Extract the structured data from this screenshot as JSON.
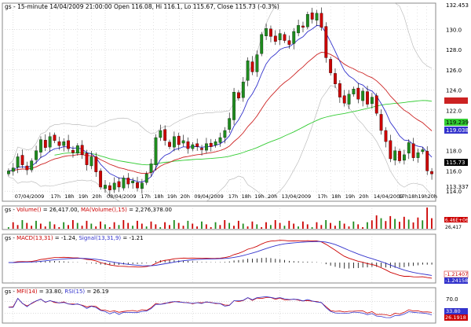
{
  "panel_main": {
    "symbol": "gs",
    "interval": "15-minute",
    "date": "14/04/2009 21:00:00",
    "ohlc_text": "Open 116.08, Hi 116.1, Lo 115.67, Close 115.73 (-0.3%)",
    "price_ticks": [
      "132.453",
      "130.0",
      "128.0",
      "126.0",
      "124.0",
      "122.0",
      "120.0",
      "118.0",
      "116.0",
      "114.0"
    ],
    "tag_upper_red": "",
    "tag_green": "119.239",
    "tag_blue": "119.038",
    "tag_close": "115.73",
    "tag_lower_bb": "113.337",
    "date_labels": [
      "07/04/2009",
      "08/04/2009",
      "09/04/2009",
      "13/04/2009",
      "14/04/2009"
    ],
    "hour_labels": [
      "17h",
      "18h",
      "19h",
      "20h"
    ]
  },
  "panel_volume": {
    "label_prefix": "gs -",
    "label_volume": "Volume()",
    "label_volume_val": " = 26,417.00, ",
    "label_ma": "MA(Volume(),15)",
    "label_ma_val": " = 2,276,378.00",
    "tag_top": "6.46E+06",
    "tag_bottom": "26,417"
  },
  "panel_macd": {
    "label_prefix": "gs -",
    "label_macd": "MACD(13,31)",
    "label_macd_val": " = -1.24, ",
    "label_signal": "Signal(13,31,9)",
    "label_signal_val": " = -1.21",
    "tag_red": "-1.21407",
    "tag_blue": "-1.24158"
  },
  "panel_mfi": {
    "label_prefix": "gs -",
    "label_mfi": "MFI(14)",
    "label_mfi_val": " = 33.80, ",
    "label_rsi": "RSI(15)",
    "label_rsi_val": " = 26.19",
    "tick_top": "70.0",
    "tag_blue": "33.80",
    "tag_red": "26.1918"
  },
  "colors": {
    "up_candle": "#1e8c1e",
    "down_candle": "#cc0000",
    "ma_fast": "#3333cc",
    "ma_slow": "#cc2222",
    "ma_long": "#33cc33",
    "bollinger": "#b4b4b4",
    "grid": "#c8c8c8",
    "volume_bar": "#cc0000"
  },
  "chart_data": [
    {
      "type": "line",
      "title": "gs - 15-minute 14/04/2009 21:00:00 Open 116.08, Hi 116.1, Lo 115.67, Close 115.73 (-0.3%)",
      "xlabel": "",
      "ylabel": "",
      "ylim": [
        113.0,
        132.6
      ],
      "grid": true,
      "closes": [
        116.0,
        116.3,
        117.4,
        116.6,
        116.1,
        117.0,
        118.0,
        119.1,
        118.3,
        119.4,
        119.0,
        118.5,
        118.9,
        118.2,
        117.8,
        118.5,
        117.6,
        116.6,
        117.4,
        115.9,
        114.4,
        114.6,
        114.1,
        114.8,
        114.4,
        115.3,
        114.7,
        115.0,
        114.3,
        114.8,
        115.7,
        116.7,
        119.3,
        120.0,
        119.0,
        118.4,
        119.4,
        118.6,
        119.0,
        118.2,
        118.6,
        118.4,
        118.1,
        118.7,
        118.4,
        118.9,
        119.3,
        120.0,
        121.2,
        123.8,
        123.2,
        124.8,
        126.9,
        125.8,
        127.5,
        129.5,
        130.1,
        129.3,
        128.8,
        129.6,
        128.9,
        128.5,
        129.8,
        130.4,
        130.2,
        131.5,
        131.0,
        131.6,
        130.2,
        127.2,
        125.7,
        124.6,
        123.3,
        122.7,
        123.6,
        124.1,
        123.1,
        123.9,
        122.6,
        123.3,
        121.7,
        120.0,
        118.9,
        117.2,
        118.0,
        117.0,
        117.6,
        118.8,
        117.3,
        117.8,
        118.1,
        116.0,
        115.7
      ],
      "series": [],
      "annotations": [
        "07/04/2009",
        "08/04/2009",
        "09/04/2009",
        "13/04/2009",
        "14/04/2009"
      ],
      "tags": {
        "close": 115.73,
        "ma_green": 119.239,
        "ma_blue": 119.038,
        "bollinger_lower": 113.337
      }
    },
    {
      "type": "bar",
      "title": "gs - Volume() = 26,417.00, MA(Volume(),15) = 2,276,378.00",
      "values_note": "",
      "last_volume": 26417,
      "ma_volume": 2276378
    },
    {
      "type": "line",
      "title": "gs - MACD(13,31) = -1.24, Signal(13,31,9) = -1.21",
      "series": [
        {
          "name": "MACD(13,31)",
          "last": -1.24158
        },
        {
          "name": "Signal(13,31,9)",
          "last": -1.21407
        }
      ]
    },
    {
      "type": "line",
      "title": "gs - MFI(14) = 33.80, RSI(15) = 26.19",
      "ylim": [
        0,
        100
      ],
      "series": [
        {
          "name": "MFI(14)",
          "last": 33.8
        },
        {
          "name": "RSI(15)",
          "last": 26.1918
        }
      ]
    }
  ]
}
